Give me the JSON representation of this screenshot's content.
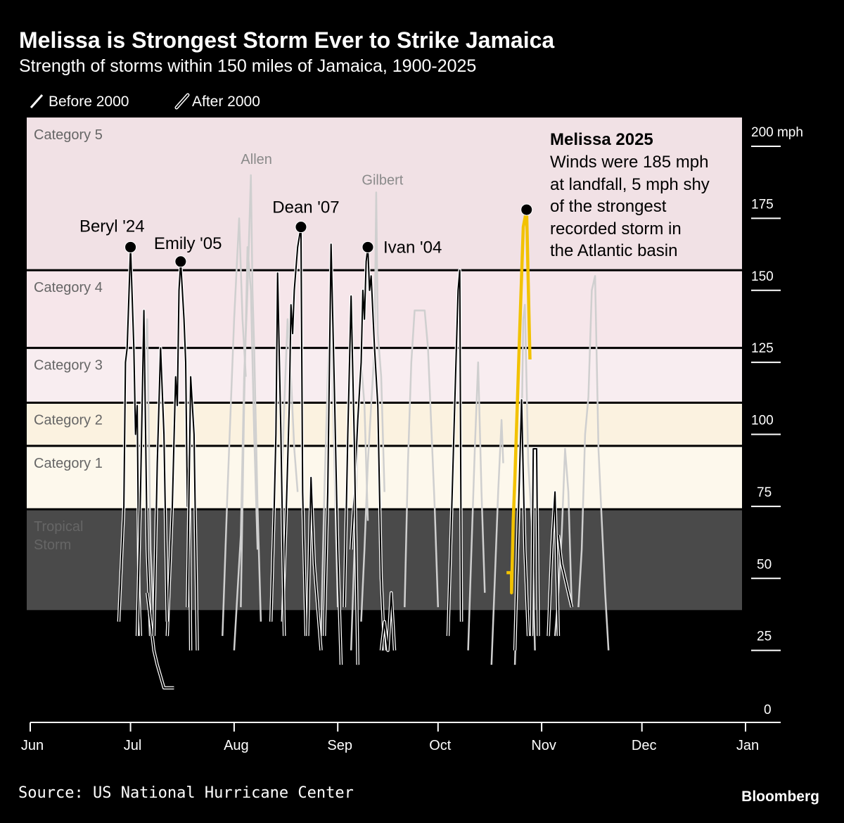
{
  "header": {
    "title": "Melissa is Strongest Storm Ever to Strike Jamaica",
    "subtitle": "Strength of storms within 150 miles of Jamaica, 1900-2025"
  },
  "legend": {
    "before": "Before 2000",
    "after": "After 2000"
  },
  "footer": {
    "source": "Source: US National Hurricane Center",
    "brand": "Bloomberg"
  },
  "annotation": {
    "title": "Melissa 2025",
    "lines": [
      "Winds were 185 mph",
      "at landfall, 5 mph shy",
      "of the strongest",
      "recorded storm in",
      "the Atlantic basin"
    ]
  },
  "chart_data": {
    "type": "line",
    "title": "Melissa is Strongest Storm Ever to Strike Jamaica",
    "subtitle": "Strength of storms within 150 miles of Jamaica, 1900-2025",
    "xlabel": "",
    "ylabel": "",
    "x_range": [
      "Jun 1",
      "Jan 1"
    ],
    "ylim": [
      0,
      210
    ],
    "x_ticks": [
      "Jun",
      "Jul",
      "Aug",
      "Sep",
      "Oct",
      "Nov",
      "Dec",
      "Jan"
    ],
    "y_ticks": [
      {
        "value": 0,
        "label": "0"
      },
      {
        "value": 25,
        "label": "25"
      },
      {
        "value": 50,
        "label": "50"
      },
      {
        "value": 75,
        "label": "75"
      },
      {
        "value": 100,
        "label": "100"
      },
      {
        "value": 125,
        "label": "125"
      },
      {
        "value": 150,
        "label": "150"
      },
      {
        "value": 175,
        "label": "175"
      },
      {
        "value": 200,
        "label": "200 mph"
      }
    ],
    "legend_position": "top-left",
    "bands": [
      {
        "label": "Tropical Storm",
        "lines": [
          "Tropical",
          "Storm"
        ],
        "from": 39,
        "to": 74,
        "color": "#4a4a4a"
      },
      {
        "label": "Category 1",
        "lines": [
          "Category 1"
        ],
        "from": 74,
        "to": 96,
        "color": "#fdf8ec"
      },
      {
        "label": "Category 2",
        "lines": [
          "Category 2"
        ],
        "from": 96,
        "to": 111,
        "color": "#fbf2e0"
      },
      {
        "label": "Category 3",
        "lines": [
          "Category 3"
        ],
        "from": 111,
        "to": 130,
        "color": "#f8edf0"
      },
      {
        "label": "Category 4",
        "lines": [
          "Category 4"
        ],
        "from": 130,
        "to": 157,
        "color": "#f6e6ea"
      },
      {
        "label": "Category 5",
        "lines": [
          "Category 5"
        ],
        "from": 157,
        "to": 210,
        "color": "#f1e1e5"
      }
    ],
    "colors": {
      "before": "#cfcfcf",
      "after": "#000000",
      "after_outline": "#ffffff",
      "highlight": "#f2c200"
    },
    "series": [
      {
        "name": "Allen",
        "era": "before",
        "points": [
          [
            "08-01T00",
            25
          ],
          [
            "08-02T00",
            45
          ],
          [
            "08-03T00",
            65
          ],
          [
            "08-04T00",
            120
          ],
          [
            "08-05T00",
            150
          ],
          [
            "08-06T00",
            190
          ],
          [
            "08-06T12",
            150
          ],
          [
            "08-07T00",
            130
          ],
          [
            "08-08T00",
            75
          ],
          [
            "08-09T00",
            35
          ]
        ]
      },
      {
        "name": "Gilbert",
        "era": "before",
        "points": [
          [
            "09-08T00",
            35
          ],
          [
            "09-09T00",
            60
          ],
          [
            "09-10T00",
            90
          ],
          [
            "09-11T00",
            110
          ],
          [
            "09-12T00",
            130
          ],
          [
            "09-12T12",
            184
          ],
          [
            "09-13T00",
            135
          ],
          [
            "09-14T00",
            120
          ],
          [
            "09-15T00",
            80
          ]
        ]
      },
      {
        "era": "before",
        "points": [
          [
            "07-28T12",
            30
          ],
          [
            "07-30T00",
            80
          ],
          [
            "08-01T00",
            140
          ],
          [
            "08-02T12",
            175
          ],
          [
            "08-03T12",
            140
          ],
          [
            "08-04T12",
            120
          ]
        ]
      },
      {
        "era": "before",
        "points": [
          [
            "08-03T00",
            40
          ],
          [
            "08-04T00",
            110
          ],
          [
            "08-05T00",
            165
          ],
          [
            "08-06T00",
            150
          ],
          [
            "08-07T00",
            100
          ],
          [
            "08-08T00",
            60
          ]
        ]
      },
      {
        "era": "before",
        "points": [
          [
            "07-03T00",
            30
          ],
          [
            "07-04T00",
            80
          ],
          [
            "07-05T00",
            120
          ],
          [
            "07-06T00",
            140
          ],
          [
            "07-06T12",
            100
          ],
          [
            "07-07T00",
            60
          ],
          [
            "07-08T00",
            35
          ]
        ]
      },
      {
        "era": "before",
        "points": [
          [
            "08-15T00",
            75
          ],
          [
            "08-16T00",
            110
          ],
          [
            "08-17T00",
            140
          ],
          [
            "08-18T00",
            120
          ],
          [
            "08-19T00",
            95
          ],
          [
            "08-20T00",
            80
          ]
        ]
      },
      {
        "era": "before",
        "points": [
          [
            "08-27T00",
            30
          ],
          [
            "08-28T00",
            80
          ],
          [
            "08-29T00",
            120
          ],
          [
            "08-30T00",
            150
          ],
          [
            "08-31T00",
            90
          ],
          [
            "09-01T00",
            40
          ]
        ]
      },
      {
        "era": "before",
        "points": [
          [
            "09-05T00",
            25
          ],
          [
            "09-06T00",
            60
          ],
          [
            "09-07T00",
            100
          ],
          [
            "09-08T00",
            125
          ],
          [
            "09-09T00",
            110
          ],
          [
            "09-10T00",
            70
          ]
        ]
      },
      {
        "era": "before",
        "points": [
          [
            "09-21T00",
            40
          ],
          [
            "09-22T00",
            90
          ],
          [
            "09-23T00",
            125
          ],
          [
            "09-24T00",
            143
          ],
          [
            "09-27T00",
            143
          ],
          [
            "09-28T00",
            130
          ],
          [
            "09-30T00",
            75
          ],
          [
            "10-01T00",
            40
          ]
        ]
      },
      {
        "era": "before",
        "points": [
          [
            "10-10T00",
            25
          ],
          [
            "10-11T00",
            60
          ],
          [
            "10-12T00",
            95
          ],
          [
            "10-13T00",
            125
          ],
          [
            "10-14T00",
            80
          ],
          [
            "10-15T00",
            45
          ]
        ]
      },
      {
        "era": "before",
        "points": [
          [
            "10-17T00",
            20
          ],
          [
            "10-18T00",
            50
          ],
          [
            "10-19T00",
            80
          ],
          [
            "10-20T00",
            105
          ],
          [
            "10-20T12",
            90
          ]
        ]
      },
      {
        "era": "before",
        "points": [
          [
            "10-24T00",
            20
          ],
          [
            "10-25T00",
            60
          ],
          [
            "10-26T00",
            100
          ],
          [
            "10-26T12",
            140
          ],
          [
            "10-27T00",
            145
          ],
          [
            "10-28T00",
            90
          ],
          [
            "10-29T00",
            70
          ],
          [
            "10-30T00",
            25
          ]
        ]
      },
      {
        "era": "before",
        "points": [
          [
            "11-05T00",
            30
          ],
          [
            "11-06T00",
            45
          ],
          [
            "11-07T00",
            65
          ],
          [
            "11-08T00",
            95
          ],
          [
            "11-09T00",
            80
          ],
          [
            "11-10T00",
            40
          ]
        ]
      },
      {
        "era": "before",
        "points": [
          [
            "11-12T00",
            40
          ],
          [
            "11-13T00",
            60
          ],
          [
            "11-14T00",
            100
          ],
          [
            "11-15T00",
            113
          ],
          [
            "11-16T00",
            150
          ],
          [
            "11-17T00",
            155
          ],
          [
            "11-18T00",
            95
          ],
          [
            "11-19T00",
            70
          ],
          [
            "11-20T00",
            45
          ],
          [
            "11-21T00",
            25
          ]
        ]
      },
      {
        "name": "Beryl '24",
        "era": "after",
        "labeled": true,
        "points": [
          [
            "06-27T12",
            35
          ],
          [
            "06-29T00",
            75
          ],
          [
            "06-29T12",
            125
          ],
          [
            "06-30T00",
            130
          ],
          [
            "07-01T00",
            165
          ],
          [
            "07-02T00",
            130
          ],
          [
            "07-02T12",
            100
          ],
          [
            "07-03T00",
            110
          ],
          [
            "07-03T12",
            45
          ],
          [
            "07-04T00",
            30
          ]
        ]
      },
      {
        "name": "Emily '05",
        "era": "after",
        "labeled": true,
        "points": [
          [
            "07-12T00",
            30
          ],
          [
            "07-13T12",
            75
          ],
          [
            "07-14T12",
            120
          ],
          [
            "07-15T00",
            110
          ],
          [
            "07-15T12",
            150
          ],
          [
            "07-16T00",
            160
          ],
          [
            "07-17T00",
            140
          ],
          [
            "07-17T12",
            125
          ],
          [
            "07-18T00",
            75
          ],
          [
            "07-18T12",
            95
          ],
          [
            "07-19T00",
            25
          ]
        ]
      },
      {
        "name": "Dean '07",
        "era": "after",
        "labeled": true,
        "points": [
          [
            "08-15T12",
            35
          ],
          [
            "08-16T12",
            70
          ],
          [
            "08-17T12",
            110
          ],
          [
            "08-18T00",
            145
          ],
          [
            "08-18T12",
            135
          ],
          [
            "08-19T00",
            150
          ],
          [
            "08-20T00",
            165
          ],
          [
            "08-21T00",
            172
          ],
          [
            "08-21T12",
            80
          ],
          [
            "08-22T12",
            30
          ]
        ]
      },
      {
        "name": "Ivan '04",
        "era": "after",
        "labeled": true,
        "points": [
          [
            "09-05T00",
            60
          ],
          [
            "09-06T00",
            80
          ],
          [
            "09-07T00",
            105
          ],
          [
            "09-08T00",
            125
          ],
          [
            "09-08T12",
            150
          ],
          [
            "09-09T00",
            140
          ],
          [
            "09-09T12",
            160
          ],
          [
            "09-10T00",
            165
          ],
          [
            "09-10T12",
            150
          ],
          [
            "09-11T00",
            155
          ],
          [
            "09-12T00",
            130
          ],
          [
            "09-13T00",
            110
          ],
          [
            "09-14T00",
            50
          ],
          [
            "09-15T00",
            25
          ]
        ]
      },
      {
        "era": "after",
        "points": [
          [
            "07-03T00",
            30
          ],
          [
            "07-04T00",
            80
          ],
          [
            "07-05T00",
            143
          ],
          [
            "07-06T00",
            60
          ],
          [
            "07-07T00",
            30
          ]
        ]
      },
      {
        "era": "after",
        "points": [
          [
            "07-06T00",
            45
          ],
          [
            "07-07T00",
            35
          ],
          [
            "07-08T00",
            25
          ],
          [
            "07-09T00",
            20
          ],
          [
            "07-11T00",
            12
          ],
          [
            "07-14T00",
            12
          ]
        ]
      },
      {
        "era": "after",
        "points": [
          [
            "07-08T00",
            30
          ],
          [
            "07-09T00",
            90
          ],
          [
            "07-10T00",
            130
          ],
          [
            "07-11T00",
            100
          ],
          [
            "07-12T00",
            35
          ]
        ]
      },
      {
        "era": "after",
        "points": [
          [
            "07-18T00",
            40
          ],
          [
            "07-19T00",
            120
          ],
          [
            "07-20T00",
            100
          ],
          [
            "07-21T00",
            25
          ]
        ]
      },
      {
        "era": "after",
        "points": [
          [
            "08-12T00",
            35
          ],
          [
            "08-13T00",
            75
          ],
          [
            "08-13T12",
            100
          ],
          [
            "08-14T00",
            156
          ],
          [
            "08-15T00",
            100
          ],
          [
            "08-16T00",
            30
          ]
        ]
      },
      {
        "era": "after",
        "points": [
          [
            "08-23T00",
            30
          ],
          [
            "08-24T00",
            85
          ],
          [
            "08-25T00",
            55
          ],
          [
            "08-26T00",
            40
          ],
          [
            "08-27T00",
            25
          ]
        ]
      },
      {
        "era": "after",
        "points": [
          [
            "08-28T00",
            30
          ],
          [
            "08-29T00",
            80
          ],
          [
            "08-30T00",
            166
          ],
          [
            "08-31T00",
            115
          ],
          [
            "09-01T00",
            60
          ],
          [
            "09-02T00",
            20
          ]
        ]
      },
      {
        "era": "after",
        "points": [
          [
            "09-03T00",
            40
          ],
          [
            "09-04T00",
            100
          ],
          [
            "09-05T00",
            148
          ],
          [
            "09-06T00",
            95
          ],
          [
            "09-07T00",
            20
          ]
        ]
      },
      {
        "era": "after",
        "points": [
          [
            "09-14T00",
            25
          ],
          [
            "09-15T00",
            35
          ],
          [
            "09-16T00",
            25
          ],
          [
            "09-17T00",
            45
          ],
          [
            "09-18T00",
            25
          ]
        ]
      },
      {
        "era": "after",
        "points": [
          [
            "10-04T00",
            30
          ],
          [
            "10-05T00",
            70
          ],
          [
            "10-06T00",
            110
          ],
          [
            "10-07T00",
            150
          ],
          [
            "10-07T12",
            157
          ],
          [
            "10-08T00",
            35
          ]
        ]
      },
      {
        "era": "after",
        "points": [
          [
            "10-24T00",
            25
          ],
          [
            "10-25T00",
            70
          ],
          [
            "10-26T00",
            112
          ],
          [
            "10-27T00",
            60
          ],
          [
            "10-28T00",
            30
          ]
        ]
      },
      {
        "era": "after",
        "points": [
          [
            "10-29T00",
            30
          ],
          [
            "10-29T12",
            95
          ],
          [
            "10-30T12",
            95
          ],
          [
            "10-31T00",
            30
          ]
        ]
      },
      {
        "era": "after",
        "points": [
          [
            "11-03T00",
            30
          ],
          [
            "11-04T00",
            60
          ],
          [
            "11-05T00",
            80
          ],
          [
            "11-06T00",
            30
          ]
        ]
      },
      {
        "era": "after",
        "points": [
          [
            "11-06T00",
            65
          ],
          [
            "11-07T00",
            55
          ],
          [
            "11-08T00",
            50
          ],
          [
            "11-09T00",
            45
          ],
          [
            "11-10T00",
            40
          ]
        ]
      },
      {
        "name": "Melissa 2025",
        "era": "highlight",
        "labeled": true,
        "points": [
          [
            "10-21T12",
            52
          ],
          [
            "10-23T00",
            52
          ],
          [
            "10-23T00",
            45
          ],
          [
            "10-23T12",
            70
          ],
          [
            "10-24T00",
            85
          ],
          [
            "10-25T12",
            138
          ],
          [
            "10-26T12",
            172
          ],
          [
            "10-27T12",
            178
          ],
          [
            "10-28T12",
            126
          ]
        ]
      }
    ]
  }
}
